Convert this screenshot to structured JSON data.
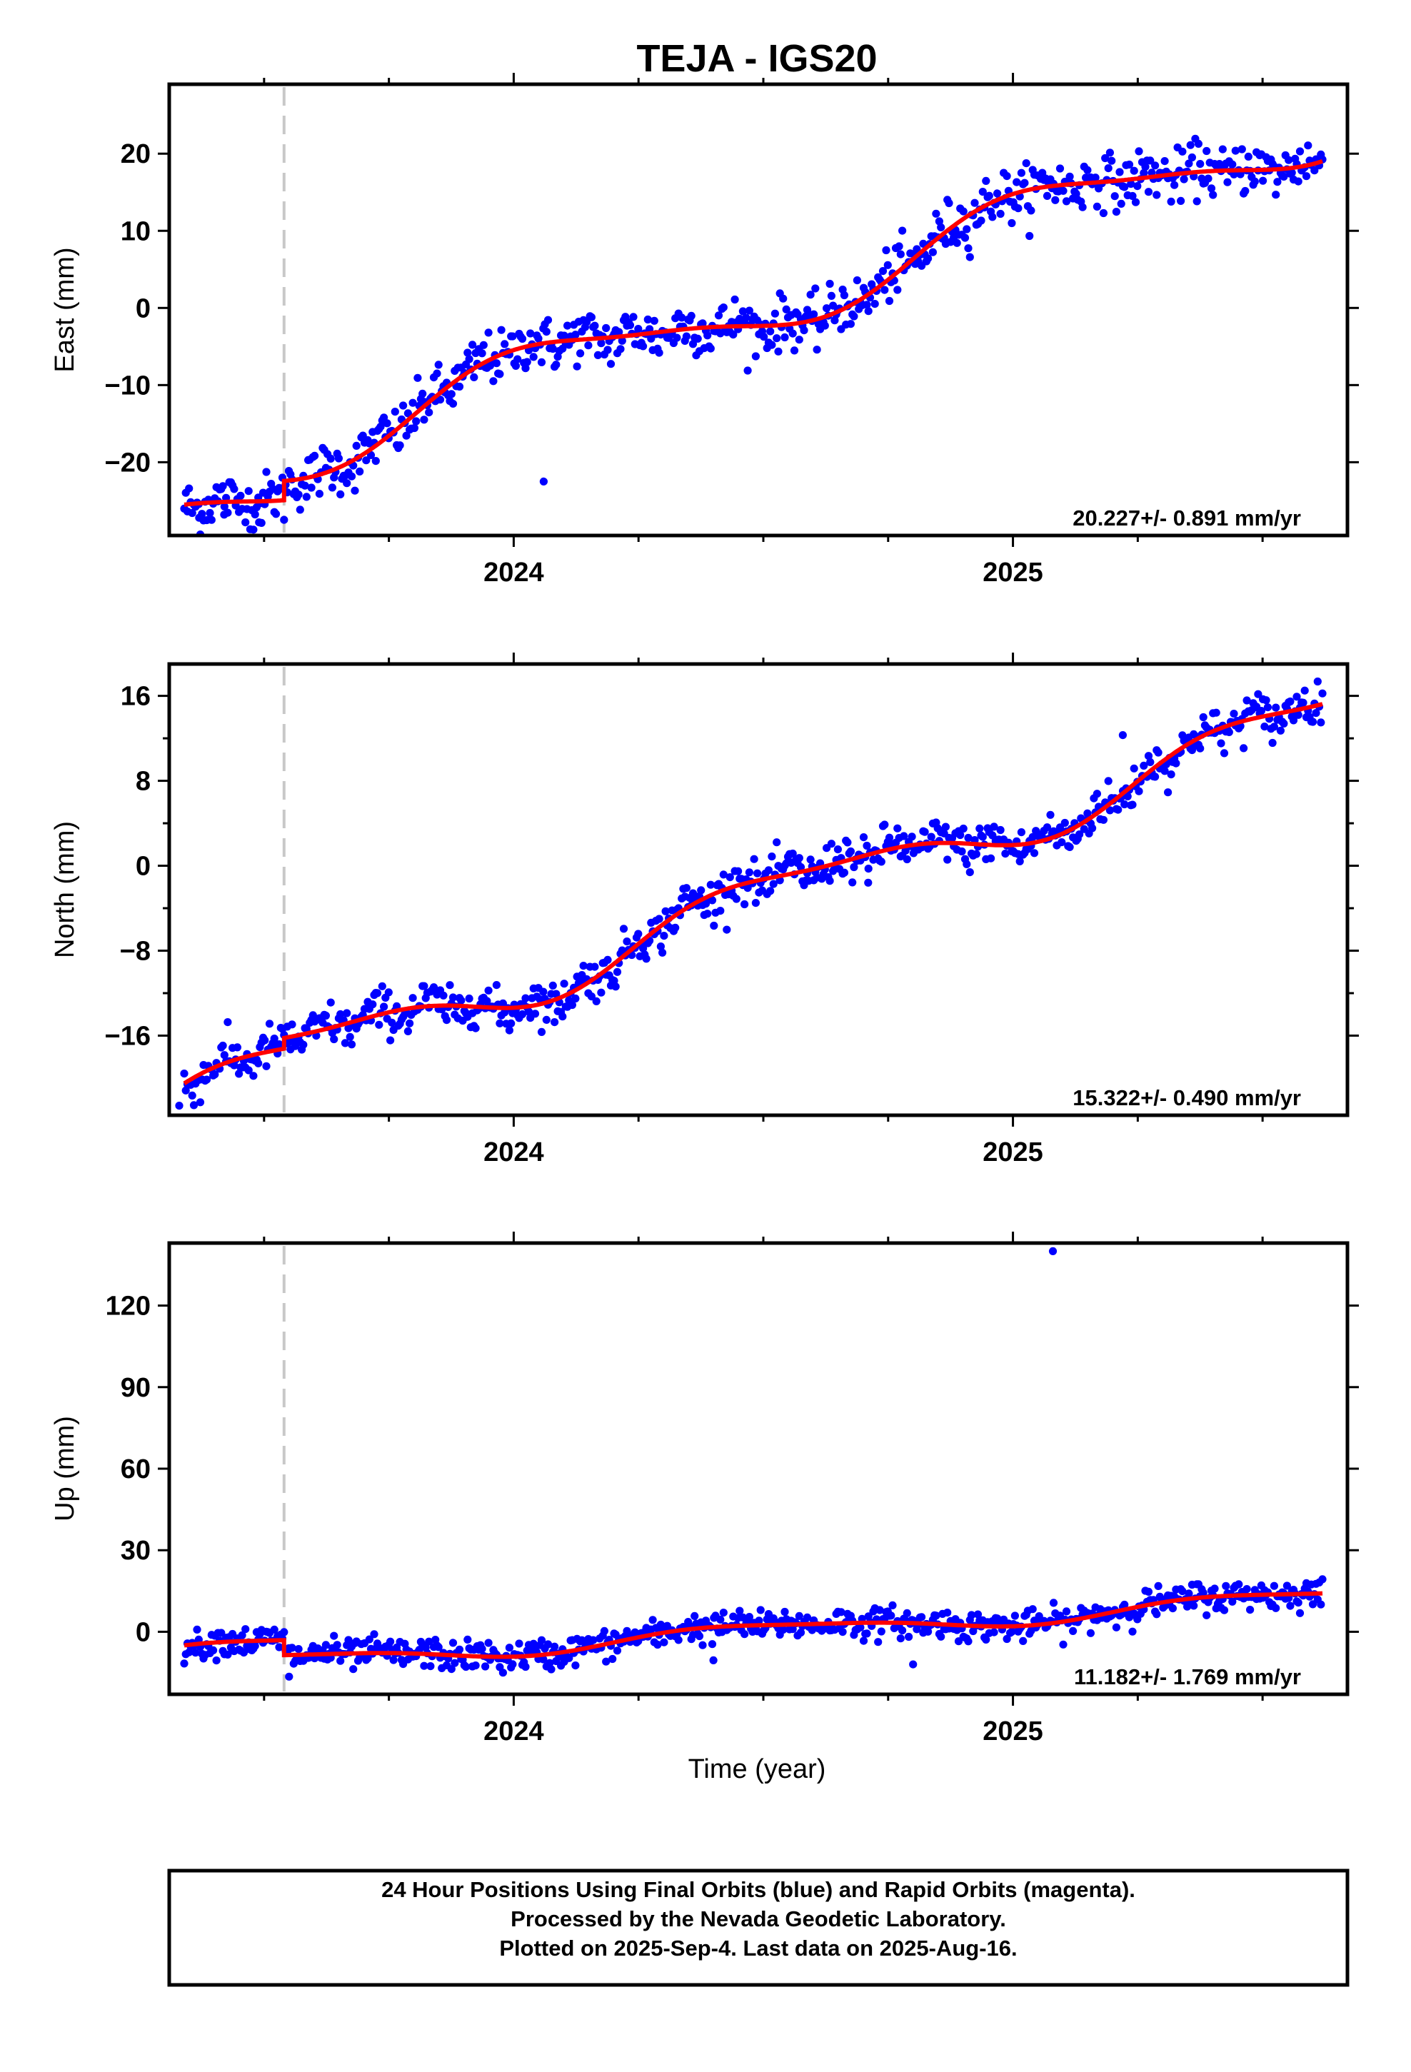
{
  "colors": {
    "observations": "#0000ff",
    "model": "#ff0000",
    "event_line": "#c8c8c8",
    "frame": "#000000"
  },
  "chart_data": {
    "type": "scatter",
    "title": "TEJA - IGS20",
    "xlabel": "Time (year)",
    "xlim": [
      2023.31,
      2025.67
    ],
    "xticks_major": [
      2024,
      2025
    ],
    "xticks_minor": [
      2023.5,
      2023.75,
      2024.25,
      2024.5,
      2024.75,
      2025.25,
      2025.5
    ],
    "event_line_year": 2023.54,
    "last_data_year": 2025.62,
    "panels": [
      {
        "id": "east",
        "ylabel": "East (mm)",
        "ylim": [
          -29.5,
          29.0
        ],
        "yticks": [
          -20,
          -10,
          0,
          10,
          20
        ],
        "yticks_minor": [],
        "rate_label": "20.227+/- 0.891 mm/yr",
        "model": {
          "start": -25.5,
          "trend": 20.227,
          "annual_amp": 3.8,
          "annual_phase": 3.3,
          "semi_amp": 0.9,
          "semi_phase": 0.5,
          "offset": 2.5
        },
        "noise": 1.7,
        "outliers": [
          [
            2023.37,
            -27.2
          ],
          [
            2023.42,
            -26.8
          ],
          [
            2023.49,
            -27.8
          ],
          [
            2024.06,
            -22.5
          ]
        ]
      },
      {
        "id": "north",
        "ylabel": "North (mm)",
        "ylim": [
          -23.5,
          19.0
        ],
        "yticks": [
          -16,
          -8,
          0,
          8,
          16
        ],
        "yticks_minor": [
          -12,
          -4,
          4,
          12
        ],
        "rate_label": "15.322+/- 0.490 mm/yr",
        "model": {
          "start": -20.5,
          "trend": 15.322,
          "annual_amp": 2.3,
          "annual_phase": 0.3,
          "semi_amp": 0.8,
          "semi_phase": 1.5,
          "offset": 1.0
        },
        "noise": 1.0,
        "outliers": [
          [
            2023.33,
            -22.6
          ],
          [
            2024.71,
            -1.6
          ],
          [
            2025.22,
            12.3
          ]
        ]
      },
      {
        "id": "up",
        "ylabel": "Up (mm)",
        "ylim": [
          -23.0,
          143.0
        ],
        "yticks": [
          0,
          30,
          60,
          90,
          120
        ],
        "yticks_minor": [],
        "rate_label": "11.182+/- 1.769 mm/yr",
        "model": {
          "start": -5.0,
          "trend": 11.182,
          "annual_amp": 3.0,
          "annual_phase": 0.6,
          "semi_amp": 0.8,
          "semi_phase": 2.0,
          "offset": -5.5
        },
        "noise": 2.7,
        "outliers": [
          [
            2025.08,
            140.0
          ],
          [
            2024.8,
            -12.0
          ],
          [
            2024.4,
            -10.5
          ],
          [
            2023.55,
            -16.5
          ]
        ]
      }
    ]
  },
  "footer": {
    "line1": "24 Hour Positions Using Final Orbits (blue) and Rapid Orbits (magenta).",
    "line2": "Processed by the Nevada Geodetic Laboratory.",
    "line3": "Plotted on 2025-Sep-4. Last data on 2025-Aug-16."
  }
}
